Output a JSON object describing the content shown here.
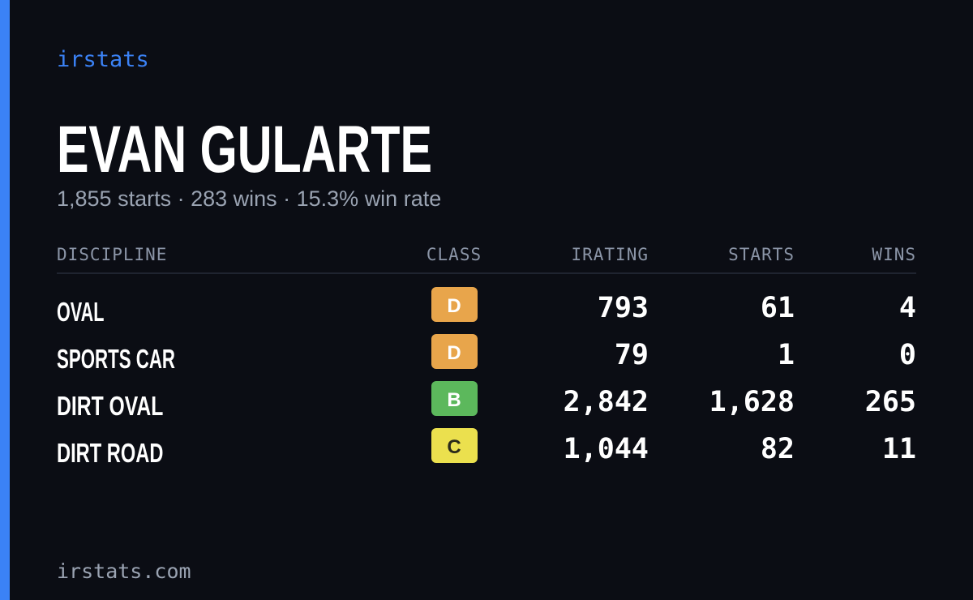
{
  "brand": "irstats",
  "title": "EVAN GULARTE",
  "subtitle": "1,855 starts · 283 wins · 15.3% win rate",
  "table": {
    "headers": [
      "DISCIPLINE",
      "CLASS",
      "IRATING",
      "STARTS",
      "WINS"
    ],
    "rows": [
      {
        "discipline": "OVAL",
        "class": "D",
        "class_color": "#e8a54b",
        "class_text_color": "#ffffff",
        "irating": "793",
        "starts": "61",
        "wins": "4"
      },
      {
        "discipline": "SPORTS CAR",
        "class": "D",
        "class_color": "#e8a54b",
        "class_text_color": "#ffffff",
        "irating": "79",
        "starts": "1",
        "wins": "0"
      },
      {
        "discipline": "DIRT OVAL",
        "class": "B",
        "class_color": "#5cb85c",
        "class_text_color": "#ffffff",
        "irating": "2,842",
        "starts": "1,628",
        "wins": "265"
      },
      {
        "discipline": "DIRT ROAD",
        "class": "C",
        "class_color": "#ebe04e",
        "class_text_color": "#2a2a1a",
        "irating": "1,044",
        "starts": "82",
        "wins": "11"
      }
    ]
  },
  "footer": "irstats.com"
}
